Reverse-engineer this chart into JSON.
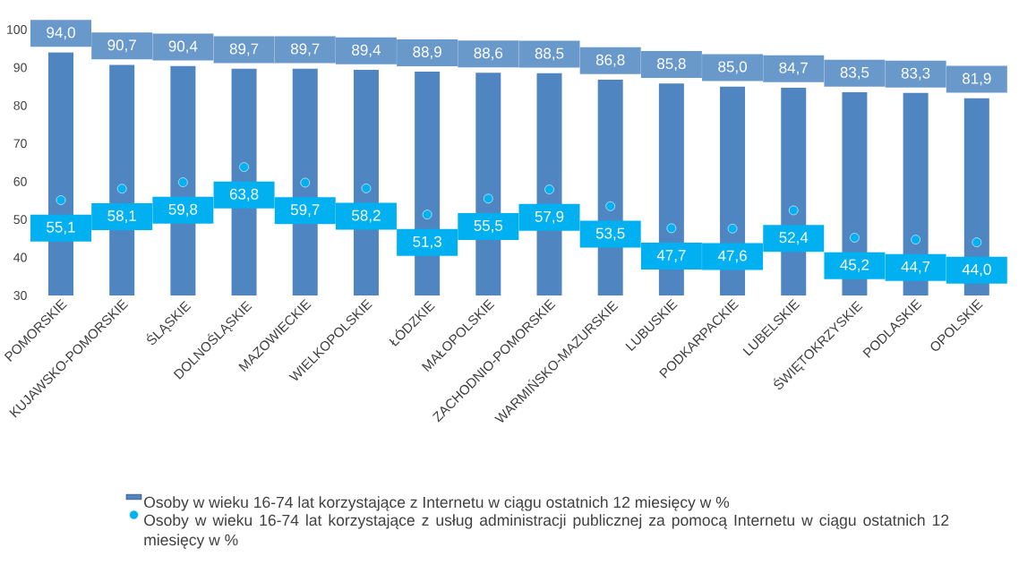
{
  "chart_data": {
    "type": "bar",
    "categories": [
      "POMORSKIE",
      "KUJAWSKO-POMORSKIE",
      "ŚLĄSKIE",
      "DOLNOŚLĄSKIE",
      "MAZOWIECKIE",
      "WIELKOPOLSKIE",
      "ŁÓDZKIE",
      "MAŁOPOLSKIE",
      "ZACHODNIO-POMORSKIE",
      "WARMIŃSKO-MAZURSKIE",
      "LUBUSKIE",
      "PODKARPACKIE",
      "LUBELSKIE",
      "ŚWIĘTOKRZYSKIE",
      "PODLASKIE",
      "OPOLSKIE"
    ],
    "series": [
      {
        "name": "Osoby w wieku 16-74 lat korzystające z Internetu w ciągu ostatnich 12 miesięcy w %",
        "type": "bar",
        "color": "#4f86c2",
        "values": [
          94.0,
          90.7,
          90.4,
          89.7,
          89.7,
          89.4,
          88.9,
          88.6,
          88.5,
          86.8,
          85.8,
          85.0,
          84.7,
          83.5,
          83.3,
          81.9
        ],
        "value_labels": [
          "94,0",
          "90,7",
          "90,4",
          "89,7",
          "89,7",
          "89,4",
          "88,9",
          "88,6",
          "88,5",
          "86,8",
          "85,8",
          "85,0",
          "84,7",
          "83,5",
          "83,3",
          "81,9"
        ]
      },
      {
        "name": "Osoby w wieku 16-74 lat korzystające z usług administracji publicznej za pomocą Internetu w ciągu ostatnich 12 miesięcy w %",
        "type": "scatter",
        "color": "#00b0f0",
        "marker": "circle",
        "values": [
          55.1,
          58.1,
          59.8,
          63.8,
          59.7,
          58.2,
          51.3,
          55.5,
          57.9,
          53.5,
          47.7,
          47.6,
          52.4,
          45.2,
          44.7,
          44.0
        ],
        "value_labels": [
          "55,1",
          "58,1",
          "59,8",
          "63,8",
          "59,7",
          "58,2",
          "51,3",
          "55,5",
          "57,9",
          "53,5",
          "47,7",
          "47,6",
          "52,4",
          "45,2",
          "44,7",
          "44,0"
        ]
      }
    ],
    "ylim": [
      30,
      100
    ],
    "yticks": [
      30,
      40,
      50,
      60,
      70,
      80,
      90,
      100
    ],
    "legend": "bottom",
    "grid": false
  }
}
